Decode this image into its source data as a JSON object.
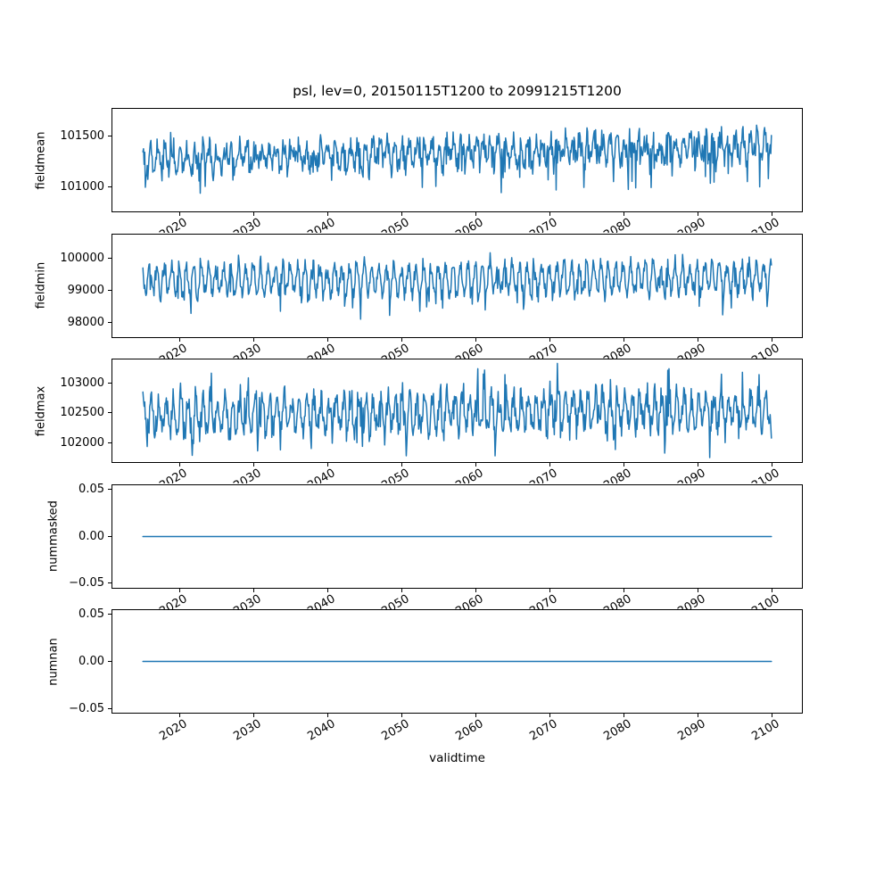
{
  "figure": {
    "title": "psl, lev=0, 20150115T1200 to 20991215T1200",
    "xlabel": "validtime",
    "background": "#ffffff",
    "line_color": "#1f77b4",
    "axis_color": "#000000",
    "tick_label_color": "#000000"
  },
  "chart_data": {
    "type": "line",
    "title": "psl, lev=0, 20150115T1200 to 20991215T1200",
    "xlabel": "validtime",
    "legend": "none",
    "grid": false,
    "x": {
      "start": 2015.042,
      "end": 2099.958,
      "samples_per_year": 12,
      "n_points": 1020,
      "xlim": [
        2010.8,
        2104.2
      ],
      "tick_rotation_deg": 30,
      "ticks": [
        {
          "value": 2020,
          "label": "2020"
        },
        {
          "value": 2030,
          "label": "2030"
        },
        {
          "value": 2040,
          "label": "2040"
        },
        {
          "value": 2050,
          "label": "2050"
        },
        {
          "value": 2060,
          "label": "2060"
        },
        {
          "value": 2070,
          "label": "2070"
        },
        {
          "value": 2080,
          "label": "2080"
        },
        {
          "value": 2090,
          "label": "2090"
        },
        {
          "value": 2100,
          "label": "2100"
        }
      ]
    },
    "panels": [
      {
        "ylabel": "fieldmean",
        "ylim": [
          100745,
          101780
        ],
        "yticks": [
          {
            "value": 101500,
            "label": "101500"
          },
          {
            "value": 101000,
            "label": "101000"
          }
        ],
        "series": {
          "kind": "noisy",
          "seed": 101,
          "base": 101270,
          "trend": 130,
          "seasonal_amp": 95,
          "seasonal_phase": 1.3,
          "noise_amp": 170,
          "dip_prob": 0.05,
          "dip_amp": 320,
          "peak_prob": 0.02,
          "peak_amp": 150,
          "min": 100785,
          "max": 101770
        }
      },
      {
        "ylabel": "fieldmin",
        "ylim": [
          97530,
          100760
        ],
        "yticks": [
          {
            "value": 100000,
            "label": "100000"
          },
          {
            "value": 99000,
            "label": "99000"
          },
          {
            "value": 98000,
            "label": "98000"
          }
        ],
        "series": {
          "kind": "noisy",
          "seed": 202,
          "base": 99320,
          "trend": 90,
          "seasonal_amp": 430,
          "seasonal_phase": 2.2,
          "noise_amp": 340,
          "dip_prob": 0.06,
          "dip_amp": 650,
          "peak_prob": 0.02,
          "peak_amp": 250,
          "min": 97690,
          "max": 100330
        }
      },
      {
        "ylabel": "fieldmax",
        "ylim": [
          101660,
          103410
        ],
        "yticks": [
          {
            "value": 103000,
            "label": "103000"
          },
          {
            "value": 102500,
            "label": "102500"
          },
          {
            "value": 102000,
            "label": "102000"
          }
        ],
        "series": {
          "kind": "noisy",
          "seed": 303,
          "base": 102450,
          "trend": 90,
          "seasonal_amp": 270,
          "seasonal_phase": 0.8,
          "noise_amp": 280,
          "dip_prob": 0.04,
          "dip_amp": 450,
          "peak_prob": 0.04,
          "peak_amp": 420,
          "min": 101750,
          "max": 103330
        }
      },
      {
        "ylabel": "nummasked",
        "ylim": [
          -0.0555,
          0.0555
        ],
        "yticks": [
          {
            "value": 0.05,
            "label": "0.05"
          },
          {
            "value": 0,
            "label": "0.00"
          },
          {
            "value": -0.05,
            "label": "−0.05"
          }
        ],
        "series": {
          "kind": "constant",
          "value": 0
        }
      },
      {
        "ylabel": "numnan",
        "ylim": [
          -0.0555,
          0.0555
        ],
        "yticks": [
          {
            "value": 0.05,
            "label": "0.05"
          },
          {
            "value": 0,
            "label": "0.00"
          },
          {
            "value": -0.05,
            "label": "−0.05"
          }
        ],
        "series": {
          "kind": "constant",
          "value": 0
        }
      }
    ]
  }
}
